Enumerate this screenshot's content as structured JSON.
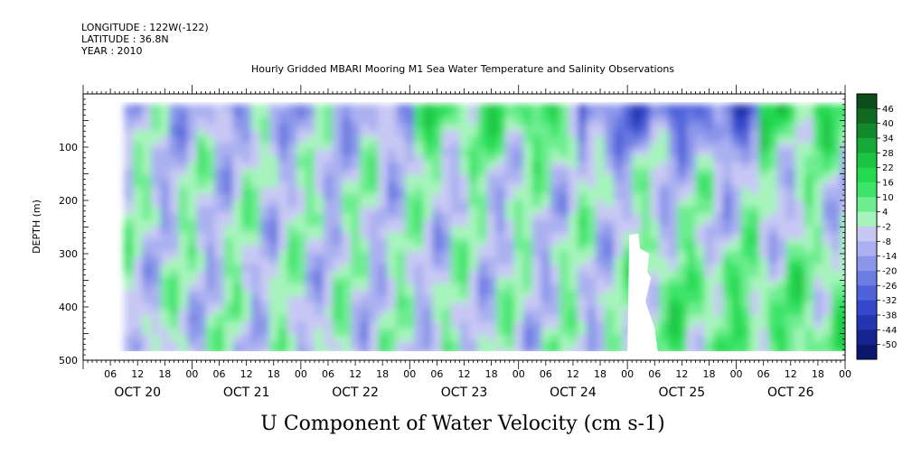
{
  "header": {
    "longitude": "LONGITUDE : 122W(-122)",
    "latitude": "LATITUDE : 36.8N",
    "year": "YEAR : 2010"
  },
  "chart_data": {
    "type": "heatmap",
    "title": "Hourly Gridded MBARI Mooring M1 Sea Water Temperature and Salinity Observations",
    "xlabel": "U Component of Water Velocity (cm s-1)",
    "ylabel": "DEPTH (m)",
    "ylim": [
      500,
      0
    ],
    "yticks": [
      100,
      200,
      300,
      400,
      500
    ],
    "y_tick_labels": [
      "100",
      "200",
      "300",
      "400",
      "500"
    ],
    "x_hour_ticks": [
      "06",
      "12",
      "18",
      "00",
      "06",
      "12",
      "18",
      "00",
      "06",
      "12",
      "18",
      "00",
      "06",
      "12",
      "18",
      "00",
      "06",
      "12",
      "18",
      "00",
      "06",
      "12",
      "18",
      "00",
      "06",
      "12",
      "18",
      "00"
    ],
    "x_day_labels": [
      "OCT 20",
      "OCT 21",
      "OCT 22",
      "OCT 23",
      "OCT 24",
      "OCT 25",
      "OCT 26"
    ],
    "x_start": "2010-10-20 00:00",
    "x_end": "2010-10-27 00:00",
    "data_start": "2010-10-20 09:00",
    "data_end": "2010-10-27 00:00",
    "data_depth_range": [
      20,
      485
    ],
    "colorbar": {
      "levels": [
        "46",
        "40",
        "34",
        "28",
        "22",
        "16",
        "10",
        "4",
        "-2",
        "-8",
        "-14",
        "-20",
        "-26",
        "-32",
        "-38",
        "-44",
        "-50"
      ],
      "range": [
        -50,
        52
      ],
      "colors_high_to_low": [
        "#0b4d19",
        "#0f6b22",
        "#12892c",
        "#16a838",
        "#1cc443",
        "#22d94f",
        "#3ee46a",
        "#6ded8f",
        "#a6f4bb",
        "#c8c8f4",
        "#aab0f0",
        "#8b96ea",
        "#6d7ce2",
        "#4f62da",
        "#3548cc",
        "#2335b0",
        "#152490",
        "#0b166e"
      ]
    },
    "features": [
      {
        "depth_band": "surface (20-100 m)",
        "oct20_oct22": "weak negative to near zero",
        "oct22_oct24": "positive, 10 to 25",
        "oct24_oct26": "negative, -15 to -30",
        "oct26_end": "positive"
      },
      {
        "depth_band": "mid (100-400 m)",
        "pattern": "alternating vertical bands of -20 to +20 with period of about 12 hours"
      },
      {
        "depth_band": "deep (300-485 m) after Oct 25",
        "pattern": "positive, 10 to 20"
      },
      {
        "missing_data": "Oct 25 00:00-06:00, depth 260-485 m"
      }
    ]
  }
}
